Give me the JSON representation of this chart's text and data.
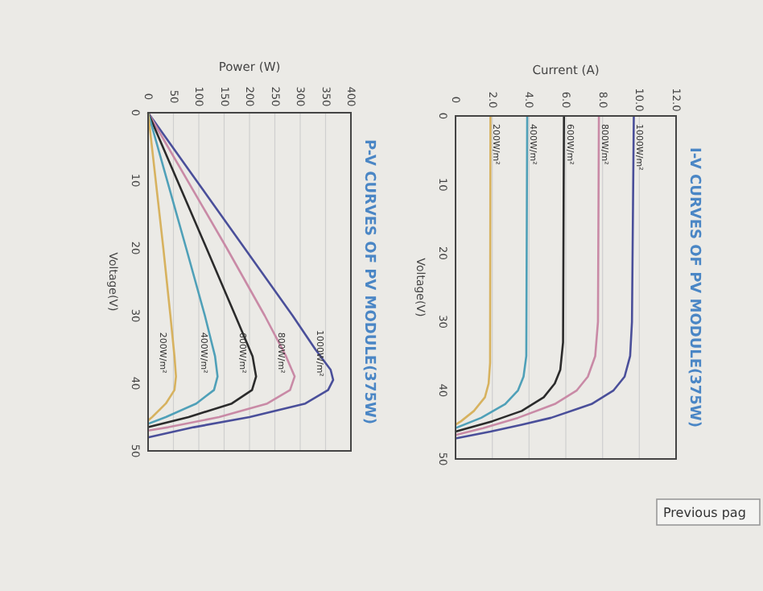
{
  "chart_data": [
    {
      "type": "line",
      "title": "I-V CURVES OF PV MODULE(375W)",
      "xlabel": "Current (A)",
      "ylabel": "Voltage(V)",
      "xlim": [
        0,
        12
      ],
      "xticks": [
        0,
        {
          "value": 2,
          "label": "2.0"
        },
        {
          "value": 4,
          "label": "4.0"
        },
        {
          "value": 6,
          "label": "6.0"
        },
        {
          "value": 8,
          "label": "8.0"
        },
        {
          "value": 10,
          "label": "10.0"
        },
        {
          "value": 12,
          "label": "12.0"
        }
      ],
      "ylim": [
        50,
        0
      ],
      "yticks": [
        0,
        10,
        20,
        30,
        40,
        50
      ],
      "grid": "x",
      "series": [
        {
          "name": "1000W/m²",
          "color": "#4a4f9a",
          "x": [
            9.7,
            9.6,
            9.5,
            9.2,
            8.6,
            7.4,
            5.2,
            3.6,
            1.9,
            0
          ],
          "values": [
            0,
            30,
            35,
            38,
            40,
            42,
            44,
            45,
            46,
            47
          ]
        },
        {
          "name": "800W/m²",
          "color": "#c98aa6",
          "x": [
            7.8,
            7.75,
            7.6,
            7.2,
            6.6,
            5.4,
            3.4,
            1.5,
            0
          ],
          "values": [
            0,
            30,
            35,
            38,
            40,
            42,
            44,
            45.5,
            46.5
          ]
        },
        {
          "name": "600W/m²",
          "color": "#2b2b2b",
          "x": [
            5.9,
            5.85,
            5.7,
            5.4,
            4.8,
            3.6,
            2,
            0
          ],
          "values": [
            0,
            33,
            37,
            39,
            41,
            43,
            44.5,
            46
          ]
        },
        {
          "name": "400W/m²",
          "color": "#4fa0b8",
          "x": [
            3.9,
            3.85,
            3.7,
            3.4,
            2.7,
            1.4,
            0
          ],
          "values": [
            0,
            35,
            38,
            40,
            42,
            44,
            45.5
          ]
        },
        {
          "name": "200W/m²",
          "color": "#d7b25f",
          "x": [
            1.9,
            1.88,
            1.8,
            1.6,
            1,
            0.3,
            0
          ],
          "values": [
            0,
            36,
            39,
            41,
            43,
            44.5,
            45
          ]
        }
      ]
    },
    {
      "type": "line",
      "title": "P-V CURVES OF PV MODULE(375W)",
      "xlabel": "Power (W)",
      "ylabel": "Voltage(V)",
      "xlim": [
        0,
        400
      ],
      "xticks": [
        0,
        50,
        100,
        150,
        200,
        250,
        300,
        350,
        400
      ],
      "ylim": [
        50,
        0
      ],
      "yticks": [
        0,
        10,
        20,
        30,
        40,
        50
      ],
      "grid": "x",
      "annotations": [
        "Previous pag"
      ],
      "series": [
        {
          "name": "1000W/m²",
          "color": "#4a4f9a",
          "x": [
            0,
            95,
            190,
            285,
            330,
            360,
            365,
            355,
            310,
            200,
            90,
            0
          ],
          "values": [
            0,
            10,
            20,
            30,
            35,
            38,
            39.5,
            41,
            43,
            45,
            46.5,
            48
          ]
        },
        {
          "name": "800W/m²",
          "color": "#c98aa6",
          "x": [
            0,
            155,
            230,
            272,
            289,
            280,
            235,
            140,
            40,
            0
          ],
          "values": [
            0,
            20,
            30,
            36,
            39,
            41,
            43,
            45,
            46.5,
            47
          ]
        },
        {
          "name": "600W/m²",
          "color": "#2b2b2b",
          "x": [
            0,
            115,
            172,
            206,
            213,
            205,
            165,
            80,
            0
          ],
          "values": [
            0,
            20,
            30,
            36,
            39,
            41,
            43,
            45,
            46.5
          ]
        },
        {
          "name": "400W/m²",
          "color": "#4fa0b8",
          "x": [
            0,
            75,
            112,
            132,
            137,
            130,
            95,
            35,
            0
          ],
          "values": [
            0,
            20,
            30,
            36,
            39,
            41,
            43,
            45,
            46
          ]
        },
        {
          "name": "200W/m²",
          "color": "#d7b25f",
          "x": [
            0,
            30,
            44,
            52,
            55,
            52,
            35,
            8,
            0
          ],
          "values": [
            0,
            20,
            30,
            36,
            39,
            41,
            43,
            45,
            45.5
          ]
        }
      ]
    }
  ]
}
